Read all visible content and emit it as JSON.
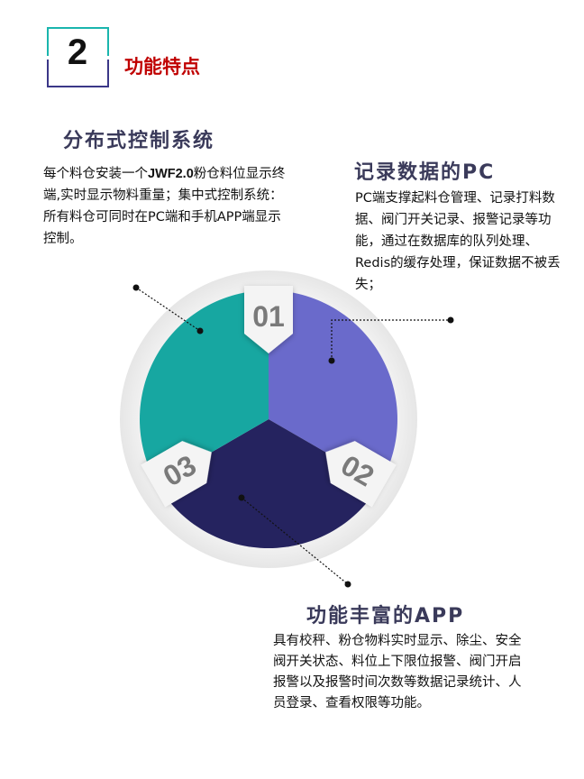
{
  "section": {
    "number": "2",
    "title": "功能特点"
  },
  "features": [
    {
      "title": "分布式控制系统",
      "text_before": "每个料仓安装一个",
      "text_bold": "JWF2.0",
      "text_after": "粉仓料位显示终端,实时显示物料重量；集中式控制系统：所有料仓可同时在PC端和手机APP端显示控制。"
    },
    {
      "title": "记录数据的PC",
      "text": "PC端支撑起料仓管理、记录打料数据、阀门开关记录、报警记录等功能，通过在数据库的队列处理、Redis的缓存处理，保证数据不被丢失；"
    },
    {
      "title": "功能丰富的APP",
      "text": "具有校秤、粉仓物料实时显示、除尘、安全阀开关状态、料位上下限位报警、阀门开启报警以及报警时间次数等数据记录统计、人员登录、查看权限等功能。"
    }
  ],
  "wheel": {
    "labels": [
      "01",
      "02",
      "03"
    ],
    "colors": {
      "segment_01": "#6a6acb",
      "segment_02": "#25235f",
      "segment_03": "#17a7a1",
      "box_top": "#1ab5ad",
      "box_bottom": "#3b3788"
    }
  }
}
